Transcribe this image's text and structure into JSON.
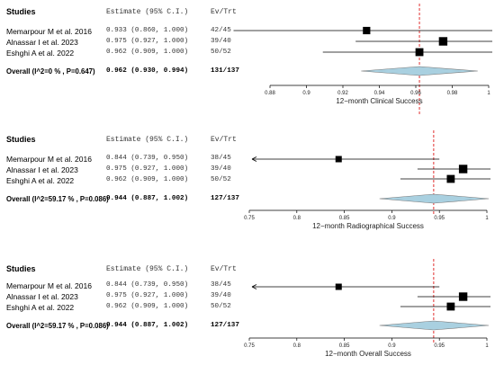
{
  "chart_data": [
    {
      "type": "forest",
      "header": {
        "studies": "Studies",
        "estimate": "Estimate (95% C.I.)",
        "events": "Ev/Trt"
      },
      "studies": [
        {
          "name": "Memarpour M et al. 2016",
          "estimate_text": "0.933 (0.860, 1.000)",
          "events": "42/45",
          "est": 0.933,
          "lo": 0.86,
          "hi": 1.0,
          "weight": 0.35,
          "left_arrow": false
        },
        {
          "name": "Alnassar I et al. 2023",
          "estimate_text": "0.975 (0.927, 1.000)",
          "events": "39/40",
          "est": 0.975,
          "lo": 0.927,
          "hi": 1.0,
          "weight": 0.45,
          "left_arrow": false
        },
        {
          "name": "Eshghi A et al. 2022",
          "estimate_text": "0.962 (0.909, 1.000)",
          "events": "50/52",
          "est": 0.962,
          "lo": 0.909,
          "hi": 1.0,
          "weight": 0.4,
          "left_arrow": false
        }
      ],
      "overall": {
        "label": "Overall (I^2=0 % , P=0.647)",
        "estimate_text": "0.962 (0.930, 0.994)",
        "events": "131/137",
        "est": 0.962,
        "lo": 0.93,
        "hi": 0.994
      },
      "xlim": [
        0.88,
        1.0
      ],
      "ticks": [
        "0.88",
        "0.9",
        "0.92",
        "0.94",
        "0.96",
        "0.98",
        "1"
      ],
      "tick_values": [
        0.88,
        0.9,
        0.92,
        0.94,
        0.96,
        0.98,
        1.0
      ],
      "xlabel": "12−month Clinical Success",
      "ref_line": 0.962,
      "ref_color": "#e03030",
      "diamond_color": "#a9d0e0",
      "clip_left_arrow": false
    },
    {
      "type": "forest",
      "header": {
        "studies": "Studies",
        "estimate": "Estimate (95% C.I.)",
        "events": "Ev/Trt"
      },
      "studies": [
        {
          "name": "Memarpour M et al. 2016",
          "estimate_text": "0.844 (0.739, 0.950)",
          "events": "38/45",
          "est": 0.844,
          "lo": 0.739,
          "hi": 0.95,
          "weight": 0.25,
          "left_arrow": true
        },
        {
          "name": "Alnassar I et al. 2023",
          "estimate_text": "0.975 (0.927, 1.000)",
          "events": "39/40",
          "est": 0.975,
          "lo": 0.927,
          "hi": 1.0,
          "weight": 0.45,
          "left_arrow": false
        },
        {
          "name": "Eshghi A et al. 2022",
          "estimate_text": "0.962 (0.909, 1.000)",
          "events": "50/52",
          "est": 0.962,
          "lo": 0.909,
          "hi": 1.0,
          "weight": 0.4,
          "left_arrow": false
        }
      ],
      "overall": {
        "label": "Overall (I^2=59.17 % , P=0.086)",
        "estimate_text": "0.944 (0.887, 1.002)",
        "events": "127/137",
        "est": 0.944,
        "lo": 0.887,
        "hi": 1.002
      },
      "xlim": [
        0.75,
        1.0
      ],
      "ticks": [
        "0.75",
        "0.8",
        "0.85",
        "0.9",
        "0.95",
        "1"
      ],
      "tick_values": [
        0.75,
        0.8,
        0.85,
        0.9,
        0.95,
        1.0
      ],
      "xlabel": "12−month Radiographical Success",
      "ref_line": 0.944,
      "ref_color": "#e03030",
      "diamond_color": "#a9d0e0"
    },
    {
      "type": "forest",
      "header": {
        "studies": "Studies",
        "estimate": "Estimate (95% C.I.)",
        "events": "Ev/Trt"
      },
      "studies": [
        {
          "name": "Memarpour M et al. 2016",
          "estimate_text": "0.844 (0.739, 0.950)",
          "events": "38/45",
          "est": 0.844,
          "lo": 0.739,
          "hi": 0.95,
          "weight": 0.25,
          "left_arrow": true
        },
        {
          "name": "Alnassar I et al. 2023",
          "estimate_text": "0.975 (0.927, 1.000)",
          "events": "39/40",
          "est": 0.975,
          "lo": 0.927,
          "hi": 1.0,
          "weight": 0.45,
          "left_arrow": false
        },
        {
          "name": "Eshghi A et al. 2022",
          "estimate_text": "0.962 (0.909, 1.000)",
          "events": "50/52",
          "est": 0.962,
          "lo": 0.909,
          "hi": 1.0,
          "weight": 0.4,
          "left_arrow": false
        }
      ],
      "overall": {
        "label": "Overall (I^2=59.17 % , P=0.086)",
        "estimate_text": "0.944 (0.887, 1.002)",
        "events": "127/137",
        "est": 0.944,
        "lo": 0.887,
        "hi": 1.002
      },
      "xlim": [
        0.75,
        1.0
      ],
      "ticks": [
        "0.75",
        "0.8",
        "0.85",
        "0.9",
        "0.95",
        "1"
      ],
      "tick_values": [
        0.75,
        0.8,
        0.85,
        0.9,
        0.95,
        1.0
      ],
      "xlabel": "12−month Overall Success",
      "ref_line": 0.944,
      "ref_color": "#e03030",
      "diamond_color": "#a9d0e0"
    }
  ]
}
